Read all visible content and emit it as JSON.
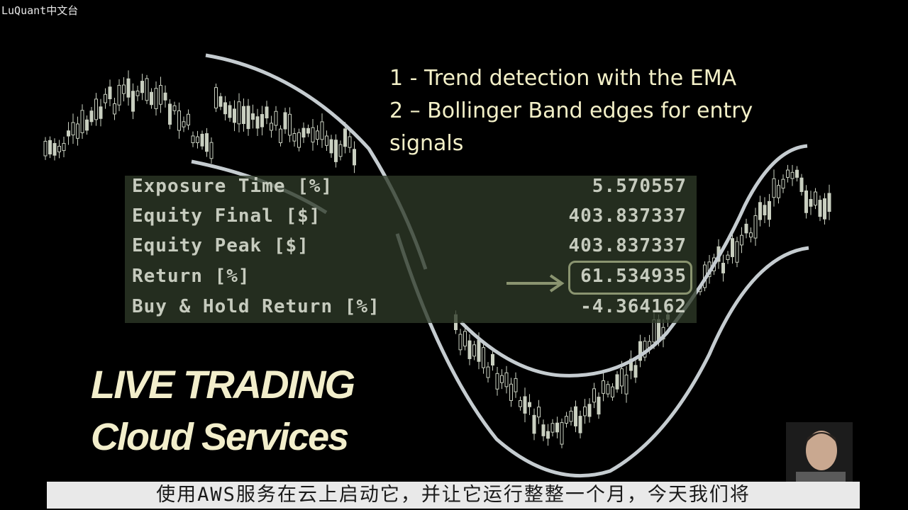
{
  "watermark": "LuQuant中文台",
  "strategy_points": [
    "1 - Trend detection with the EMA",
    "2 – Bollinger Band edges for entry",
    "signals"
  ],
  "stats": [
    {
      "label": "Exposure Time [%]",
      "value": "5.570557"
    },
    {
      "label": "Equity Final [$]",
      "value": "403.837337"
    },
    {
      "label": "Equity Peak [$]",
      "value": "403.837337"
    },
    {
      "label": "Return [%]",
      "value": "61.534935",
      "highlighted": true
    },
    {
      "label": "Buy & Hold Return [%]",
      "value": "-4.364162"
    }
  ],
  "promo": {
    "line1": "LIVE TRADING",
    "line2": "Cloud Services"
  },
  "subtitle": "使用AWS服务在云上启动它，并让它运行整整一个月，今天我们将",
  "colors": {
    "background": "#000000",
    "text_accent": "#f3f0c8",
    "candle": "#c9cfc0",
    "band_curve": "#cfd6da",
    "panel": "#2e3a28"
  }
}
